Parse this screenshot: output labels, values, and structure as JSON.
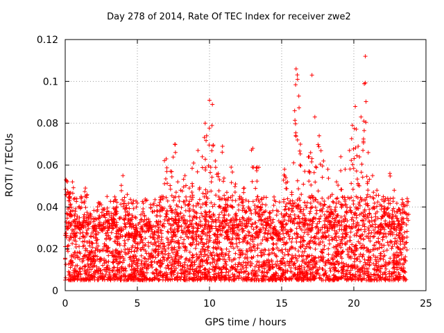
{
  "chart_data": {
    "type": "scatter",
    "title": "Day 278 of 2014, Rate Of TEC Index for receiver zwe2",
    "xlabel": "GPS time / hours",
    "ylabel": "ROTI / TECUs",
    "xlim": [
      0,
      25
    ],
    "ylim": [
      0,
      0.12
    ],
    "xticks": [
      0,
      5,
      10,
      15,
      20,
      25
    ],
    "yticks": [
      0,
      0.02,
      0.04,
      0.06,
      0.08,
      0.1,
      0.12
    ],
    "xtick_labels": [
      "0",
      "5",
      "10",
      "15",
      "20",
      "25"
    ],
    "ytick_labels": [
      "0",
      "0.02",
      "0.04",
      "0.06",
      "0.08",
      "0.1",
      "0.12"
    ],
    "grid": true,
    "marker": "+",
    "color": "#ff0000",
    "series": [
      {
        "name": "ROTI",
        "x": [
          0.05,
          0.2,
          0.35,
          0.5,
          0.7,
          0.9,
          1.1,
          1.4,
          1.7,
          2.0,
          2.3,
          2.6,
          2.9,
          3.2,
          3.5,
          3.8,
          4.0,
          4.3,
          4.6,
          4.9,
          5.2,
          5.5,
          5.8,
          6.1,
          6.4,
          6.7,
          7.0,
          7.3,
          7.6,
          7.8,
          8.0,
          8.3,
          8.6,
          8.9,
          9.2,
          9.5,
          9.7,
          9.8,
          10.0,
          10.2,
          10.4,
          10.6,
          10.9,
          11.2,
          11.5,
          11.8,
          12.1,
          12.4,
          12.7,
          13.0,
          13.3,
          13.6,
          13.9,
          14.2,
          14.5,
          14.8,
          15.0,
          15.2,
          15.4,
          15.7,
          15.9,
          16.0,
          16.1,
          16.3,
          16.6,
          16.9,
          17.1,
          17.3,
          17.6,
          17.9,
          18.2,
          18.5,
          18.8,
          19.1,
          19.4,
          19.7,
          19.9,
          20.1,
          20.3,
          20.5,
          20.7,
          20.8,
          21.0,
          21.3,
          21.6,
          21.9,
          22.2,
          22.5,
          22.8,
          23.1,
          23.4,
          23.7
        ],
        "y": [
          0.053,
          0.047,
          0.041,
          0.052,
          0.038,
          0.033,
          0.044,
          0.049,
          0.036,
          0.031,
          0.042,
          0.039,
          0.045,
          0.034,
          0.038,
          0.03,
          0.055,
          0.046,
          0.034,
          0.029,
          0.027,
          0.036,
          0.033,
          0.031,
          0.038,
          0.045,
          0.063,
          0.057,
          0.07,
          0.052,
          0.048,
          0.055,
          0.049,
          0.061,
          0.067,
          0.064,
          0.08,
          0.074,
          0.091,
          0.089,
          0.062,
          0.056,
          0.069,
          0.047,
          0.059,
          0.051,
          0.045,
          0.049,
          0.04,
          0.068,
          0.059,
          0.044,
          0.041,
          0.037,
          0.03,
          0.028,
          0.033,
          0.058,
          0.052,
          0.047,
          0.086,
          0.106,
          0.101,
          0.07,
          0.057,
          0.064,
          0.103,
          0.083,
          0.074,
          0.062,
          0.058,
          0.046,
          0.052,
          0.064,
          0.058,
          0.067,
          0.079,
          0.088,
          0.069,
          0.083,
          0.081,
          0.112,
          0.066,
          0.055,
          0.048,
          0.039,
          0.044,
          0.056,
          0.048,
          0.039,
          0.042,
          0.044
        ]
      }
    ],
    "background_band": {
      "description": "dense cloud of points between ~0.005 and ~0.03 across all hours",
      "low": 0.005,
      "high": 0.03
    }
  }
}
